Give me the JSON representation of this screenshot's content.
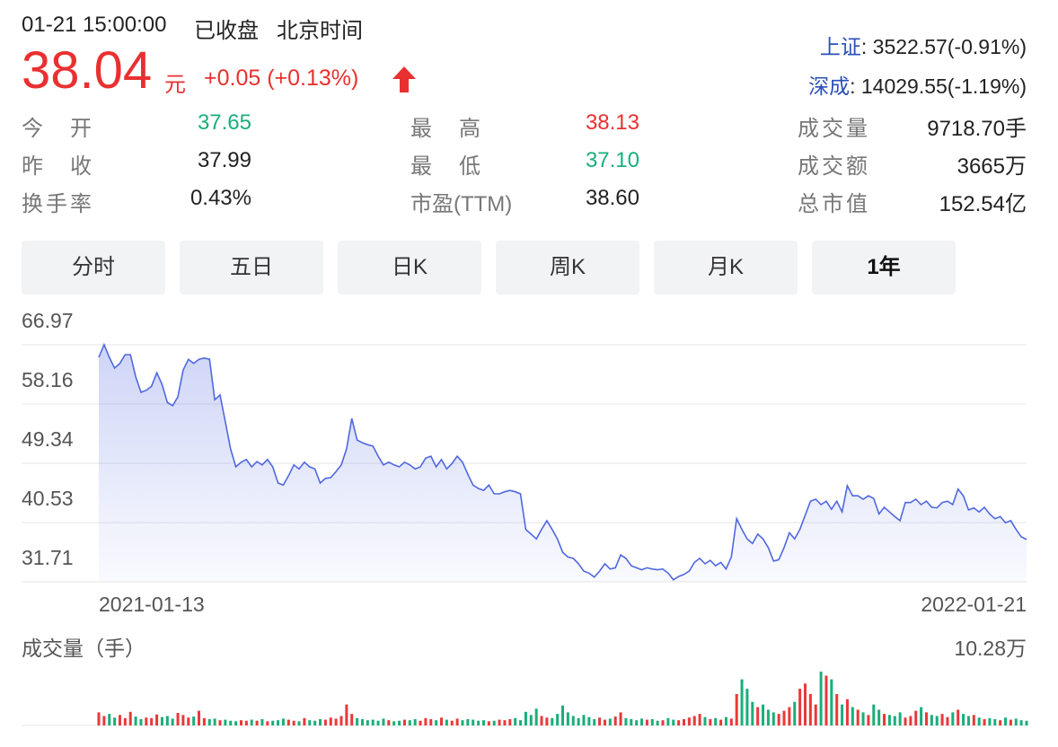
{
  "header": {
    "datetime": "01-21 15:00:00",
    "status": "已收盘",
    "timezone": "北京时间"
  },
  "quote": {
    "price": "38.04",
    "currency": "元",
    "change": "+0.05 (+0.13%)"
  },
  "indices": [
    {
      "name": "上证",
      "value": ": 3522.57(-0.91%)"
    },
    {
      "name": "深成",
      "value": ": 14029.55(-1.19%)"
    }
  ],
  "stats": [
    [
      {
        "label": "今开",
        "value": "37.65",
        "color": "#1aae7a"
      },
      {
        "label": "最高",
        "value": "38.13",
        "color": "#e93030"
      },
      {
        "label": "成交量",
        "value": "9718.70手",
        "color": "#222222"
      }
    ],
    [
      {
        "label": "昨收",
        "value": "37.99",
        "color": "#222222"
      },
      {
        "label": "最低",
        "value": "37.10",
        "color": "#1aae7a"
      },
      {
        "label": "成交额",
        "value": "3665万",
        "color": "#222222"
      }
    ],
    [
      {
        "label": "换手率",
        "value": "0.43%",
        "color": "#222222"
      },
      {
        "label": "市盈(TTM)",
        "value": "38.60",
        "color": "#222222"
      },
      {
        "label": "总市值",
        "value": "152.54亿",
        "color": "#222222"
      }
    ]
  ],
  "tabs": [
    "分时",
    "五日",
    "日K",
    "周K",
    "月K",
    "1年"
  ],
  "active_tab": 5,
  "chart_data": [
    {
      "type": "line",
      "color": "#5068e0",
      "grid": true,
      "ylim": [
        31.71,
        66.97
      ],
      "yticks": [
        66.97,
        58.16,
        49.34,
        40.53,
        31.71
      ],
      "categories": [
        "2021-01-13",
        null,
        null,
        null,
        null,
        null,
        null,
        null,
        null,
        null,
        null,
        null,
        null,
        null,
        null,
        null,
        null,
        null,
        null,
        null,
        null,
        null,
        null,
        null,
        null,
        null,
        null,
        null,
        null,
        null,
        null,
        null,
        null,
        null,
        null,
        null,
        null,
        null,
        null,
        null,
        null,
        null,
        null,
        null,
        null,
        null,
        null,
        null,
        null,
        null,
        null,
        null,
        null,
        null,
        null,
        null,
        null,
        null,
        null,
        null,
        null,
        null,
        null,
        null,
        null,
        null,
        null,
        null,
        null,
        null,
        null,
        null,
        null,
        null,
        null,
        null,
        null,
        null,
        null,
        null,
        null,
        null,
        null,
        null,
        null,
        null,
        null,
        null,
        null,
        null,
        null,
        null,
        null,
        null,
        null,
        null,
        null,
        null,
        null,
        null,
        null,
        null,
        null,
        null,
        null,
        null,
        null,
        null,
        null,
        null,
        null,
        null,
        null,
        null,
        null,
        null,
        null,
        null,
        null,
        null,
        null,
        null,
        null,
        null,
        null,
        null,
        null,
        null,
        null,
        null,
        null,
        null,
        null,
        null,
        null,
        null,
        null,
        null,
        null,
        null,
        null,
        null,
        null,
        null,
        null,
        null,
        null,
        null,
        null,
        null,
        null,
        null,
        null,
        null,
        null,
        null,
        null,
        null,
        null,
        null,
        null,
        null,
        null,
        null,
        null,
        null,
        null,
        null,
        null,
        null,
        null,
        null,
        null,
        null,
        null,
        null,
        "2022-01-21"
      ],
      "values": [
        65.1,
        67.0,
        65.1,
        63.5,
        64.2,
        65.5,
        65.5,
        62.2,
        59.9,
        60.2,
        60.8,
        62.8,
        61.1,
        58.4,
        57.9,
        59.2,
        63.2,
        64.8,
        64.2,
        64.8,
        65.0,
        64.8,
        58.8,
        59.5,
        55.5,
        51.5,
        48.8,
        49.5,
        49.9,
        48.8,
        49.6,
        49.1,
        49.9,
        48.8,
        46.4,
        46.1,
        47.5,
        49.1,
        48.5,
        49.5,
        48.8,
        48.5,
        46.4,
        47.1,
        47.2,
        48.1,
        49.1,
        51.5,
        56.0,
        52.8,
        52.4,
        52.1,
        51.9,
        50.4,
        49.1,
        49.5,
        49.1,
        48.8,
        49.5,
        49.1,
        48.5,
        48.8,
        50.1,
        50.4,
        48.8,
        49.9,
        48.5,
        49.3,
        50.4,
        49.5,
        47.7,
        46.1,
        45.6,
        45.3,
        46.1,
        44.8,
        44.8,
        45.1,
        45.3,
        45.1,
        44.8,
        39.5,
        38.8,
        38.1,
        39.5,
        40.8,
        39.5,
        38.1,
        36.1,
        35.4,
        35.2,
        34.4,
        33.3,
        33.0,
        32.4,
        33.3,
        34.4,
        33.6,
        33.8,
        35.7,
        35.2,
        34.1,
        33.8,
        33.5,
        33.8,
        33.6,
        33.5,
        33.6,
        33.0,
        32.0,
        32.5,
        32.8,
        33.3,
        34.6,
        35.2,
        34.4,
        34.9,
        34.1,
        34.6,
        33.6,
        35.4,
        41.1,
        39.5,
        38.1,
        37.4,
        38.8,
        38.1,
        36.8,
        34.8,
        35.0,
        36.8,
        39.0,
        38.1,
        39.5,
        41.6,
        43.7,
        44.0,
        43.2,
        43.7,
        42.5,
        43.7,
        42.1,
        46.0,
        44.5,
        44.5,
        44.0,
        44.5,
        44.1,
        41.8,
        42.8,
        42.1,
        41.4,
        40.8,
        43.5,
        43.5,
        44.0,
        43.2,
        43.7,
        42.8,
        42.7,
        43.5,
        43.7,
        43.2,
        45.5,
        44.5,
        42.4,
        42.7,
        42.1,
        42.8,
        41.8,
        41.1,
        41.4,
        40.5,
        40.8,
        39.5,
        38.4,
        38.0
      ]
    },
    {
      "type": "bar",
      "title": "成交量（手）",
      "up_color": "#e8393a",
      "down_color": "#1aae7a",
      "ylim": [
        0,
        102800
      ],
      "yticks": [
        {
          "value": 102800,
          "label": "10.28万"
        }
      ],
      "values": [
        25000,
        18000,
        22000,
        15000,
        20000,
        14000,
        26000,
        17000,
        12000,
        15000,
        14000,
        21000,
        16000,
        18000,
        13000,
        24000,
        20000,
        15000,
        17000,
        28000,
        14000,
        12000,
        13000,
        10000,
        11000,
        9000,
        8000,
        10000,
        9000,
        11000,
        9000,
        12000,
        8000,
        9000,
        10000,
        13000,
        11000,
        9000,
        8000,
        14000,
        10000,
        9000,
        12000,
        11000,
        15000,
        13000,
        18000,
        40000,
        22000,
        14000,
        12000,
        10000,
        11000,
        9000,
        13000,
        10000,
        8000,
        9000,
        11000,
        10000,
        12000,
        9000,
        14000,
        12000,
        10000,
        15000,
        11000,
        9000,
        13000,
        10000,
        12000,
        11000,
        9000,
        10000,
        8000,
        9000,
        11000,
        10000,
        12000,
        14000,
        10000,
        26000,
        20000,
        32000,
        18000,
        15000,
        14000,
        22000,
        38000,
        25000,
        18000,
        14000,
        20000,
        16000,
        12000,
        15000,
        11000,
        13000,
        17000,
        25000,
        14000,
        12000,
        10000,
        13000,
        11000,
        12000,
        9000,
        10000,
        14000,
        11000,
        10000,
        12000,
        15000,
        18000,
        22000,
        16000,
        12000,
        14000,
        11000,
        16000,
        13000,
        60000,
        88000,
        70000,
        45000,
        35000,
        40000,
        30000,
        25000,
        22000,
        28000,
        35000,
        45000,
        70000,
        80000,
        60000,
        40000,
        102800,
        95000,
        88000,
        60000,
        40000,
        50000,
        35000,
        30000,
        25000,
        20000,
        40000,
        30000,
        22000,
        20000,
        18000,
        25000,
        15000,
        18000,
        28000,
        35000,
        25000,
        20000,
        18000,
        22000,
        16000,
        25000,
        30000,
        22000,
        18000,
        20000,
        15000,
        12000,
        14000,
        12000,
        10000,
        15000,
        11000,
        13000,
        10000,
        9000
      ]
    }
  ]
}
